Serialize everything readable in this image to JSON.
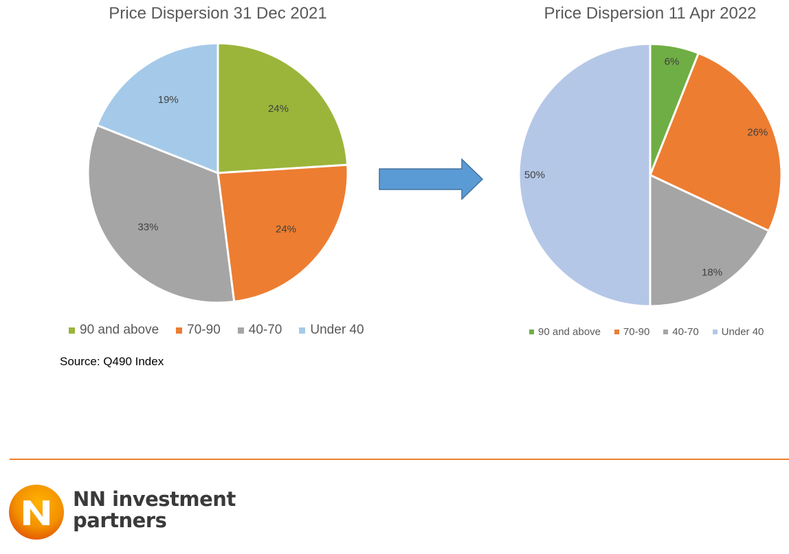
{
  "colors": {
    "green_left": "#9BB53B",
    "green_right": "#6FAE44",
    "orange": "#ED7D31",
    "gray": "#A5A5A5",
    "light_blue_left": "#A5CAE9",
    "light_blue_right": "#B4C7E7",
    "arrow_fill": "#5B9BD5",
    "arrow_stroke": "#41719C",
    "divider": "#EE7F2D",
    "brand_orange": "#EE7F00"
  },
  "chart_data": [
    {
      "type": "pie",
      "title": "Price Dispersion 31 Dec 2021",
      "categories": [
        "90 and above",
        "70-90",
        "40-70",
        "Under 40"
      ],
      "values": [
        24,
        24,
        33,
        19
      ],
      "labels": [
        "24%",
        "24%",
        "33%",
        "19%"
      ],
      "legend": "bottom"
    },
    {
      "type": "pie",
      "title": "Price Dispersion 11 Apr 2022",
      "categories": [
        "90 and above",
        "70-90",
        "40-70",
        "Under 40"
      ],
      "values": [
        6,
        26,
        18,
        50
      ],
      "labels": [
        "6%",
        "26%",
        "18%",
        "50%"
      ],
      "legend": "bottom"
    }
  ],
  "source": "Source: Q490 Index",
  "arrow_icon": "right-arrow-icon",
  "logo": {
    "icon": "nn-logo-icon",
    "line1": "NN investment",
    "line2": "partners"
  }
}
